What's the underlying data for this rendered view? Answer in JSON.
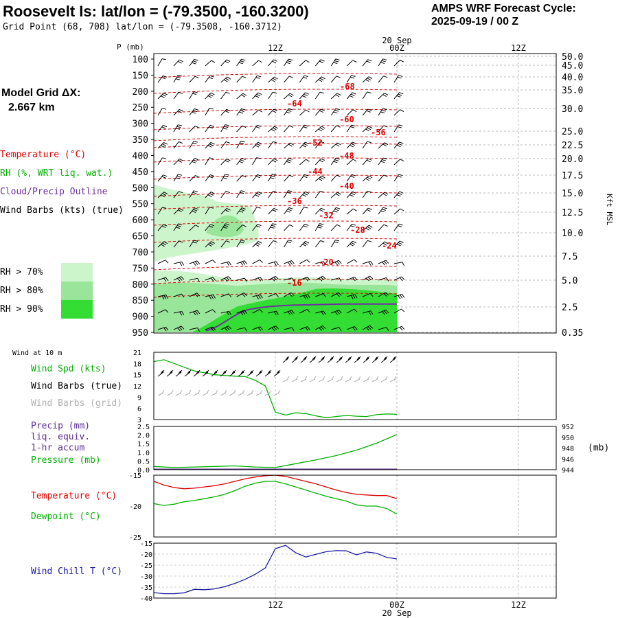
{
  "header": {
    "title": "Roosevelt Is:  lat/lon = (-79.3500, -160.3200)",
    "grid_point": "Grid Point (68, 708) lat/lon = (-79.3508, -160.3712)",
    "cycle_line1": "AMPS WRF Forecast Cycle:",
    "cycle_line2": "2025-09-19 / 00  Z"
  },
  "left_panel": {
    "model_grid_line1": "Model Grid ΔX:",
    "model_grid_line2": "2.667 km",
    "legend_temperature": "Temperature (°C)",
    "legend_rh": "RH (%, WRT liq. wat.)",
    "legend_cloud": "Cloud/Precip Outline",
    "legend_wind": "Wind Barbs (kts) (true)",
    "rh70": "RH > 70%",
    "rh80": "RH > 80%",
    "rh90": "RH > 90%"
  },
  "colors": {
    "temperature": "#e00000",
    "rh": "#00b000",
    "cloud": "#7030a0",
    "rh70": "#ccf5cc",
    "rh80": "#99e599",
    "rh90": "#33dd33",
    "precip": "#5a2d91",
    "windchill": "#1a1aa0",
    "wind_grid": "#b0b0b0"
  },
  "time_axis": {
    "top_date": "20 Sep",
    "bottom_date": "20 Sep",
    "ticks": [
      "12Z",
      "00Z",
      "12Z"
    ],
    "bottom_ticks": [
      "12Z",
      "00Z",
      "12Z"
    ]
  },
  "sounding": {
    "p_label": "P (mb)",
    "pressure_ticks": [
      "100",
      "150",
      "200",
      "250",
      "300",
      "350",
      "400",
      "450",
      "500",
      "550",
      "600",
      "650",
      "700",
      "750",
      "800",
      "850",
      "900",
      "950"
    ],
    "height_ticks": [
      "50.0",
      "45.0",
      "40.0",
      "35.0",
      "30.0",
      "25.0",
      "22.5",
      "20.0",
      "17.5",
      "15.0",
      "12.5",
      "10.0",
      "7.5",
      "5.0",
      "2.5",
      "0.35"
    ],
    "height_axis_label": "Kft MSL",
    "temp_labels": [
      "-68",
      "-64",
      "-60",
      "-56",
      "-52",
      "-48",
      "-44",
      "-40",
      "-36",
      "-32",
      "-28",
      "-24",
      "-20",
      "-16"
    ]
  },
  "panels": {
    "wind10": {
      "title": "Wind at 10 m",
      "label_spd": "Wind Spd (kts)",
      "label_barbs_true": "Wind Barbs (true)",
      "label_barbs_grid": "Wind Barbs (grid)",
      "y_ticks": [
        "21",
        "18",
        "15",
        "12",
        "9",
        "6",
        "3"
      ]
    },
    "precip": {
      "label1": "Precip (mm)",
      "label2": "liq. equiv.",
      "label3": "1-hr accum",
      "label4": "Pressure (mb)",
      "y_ticks_left": [
        "2.5",
        "2.0",
        "1.5",
        "1.0",
        "0.5",
        "0.0"
      ],
      "y_ticks_right": [
        "952",
        "950",
        "948",
        "946",
        "944"
      ],
      "right_unit": "(mb)"
    },
    "temp": {
      "label_temp": "Temperature (°C)",
      "label_dew": "Dewpoint (°C)",
      "y_ticks": [
        "-15",
        "-20",
        "-25"
      ]
    },
    "windchill": {
      "label": "Wind Chill T (°C)",
      "y_ticks": [
        "-15",
        "-20",
        "-25",
        "-30",
        "-35",
        "-40"
      ]
    }
  },
  "chart_data": [
    {
      "type": "line",
      "title": "Wind at 10 m",
      "xlabel": "",
      "ylabel": "Wind Spd (kts)",
      "x_hours": [
        0,
        1,
        2,
        3,
        4,
        5,
        6,
        7,
        8,
        9,
        10,
        11,
        12,
        13,
        14,
        15,
        16,
        17,
        18,
        19,
        20,
        21,
        22,
        23,
        24
      ],
      "ylim": [
        3,
        21
      ],
      "series": [
        {
          "name": "Wind Spd (kts)",
          "values": [
            18.5,
            19,
            18,
            17,
            16,
            15.5,
            15,
            14.8,
            14.6,
            14.5,
            13.5,
            12,
            5,
            4.2,
            4.8,
            4.6,
            4.0,
            3.5,
            3.8,
            4.1,
            3.9,
            3.8,
            4.3,
            4.5,
            4.4
          ]
        }
      ]
    },
    {
      "type": "line",
      "title": "Pressure",
      "xlabel": "",
      "ylabel": "Pressure (mb)",
      "x_hours": [
        0,
        2,
        4,
        6,
        8,
        10,
        12,
        14,
        16,
        18,
        20,
        22,
        24
      ],
      "ylim": [
        944,
        952
      ],
      "series": [
        {
          "name": "Pressure (mb)",
          "values": [
            944.6,
            944.4,
            944.5,
            944.6,
            944.7,
            944.5,
            944.4,
            945.1,
            945.8,
            946.6,
            947.6,
            948.9,
            950.5
          ]
        }
      ]
    },
    {
      "type": "line",
      "title": "Temperature / Dewpoint",
      "xlabel": "",
      "ylabel": "",
      "x_hours": [
        0,
        1,
        2,
        3,
        4,
        5,
        6,
        7,
        8,
        9,
        10,
        11,
        12,
        13,
        14,
        15,
        16,
        17,
        18,
        19,
        20,
        21,
        22,
        23,
        24
      ],
      "ylim": [
        -25,
        -15
      ],
      "series": [
        {
          "name": "Temperature (°C)",
          "values": [
            -16,
            -16.6,
            -17.0,
            -17.2,
            -17.1,
            -16.9,
            -16.7,
            -16.4,
            -16.0,
            -15.6,
            -15.3,
            -15.1,
            -15.0,
            -15.2,
            -15.6,
            -16.0,
            -16.4,
            -16.9,
            -17.4,
            -17.8,
            -18.1,
            -18.2,
            -18.3,
            -18.3,
            -18.8
          ]
        },
        {
          "name": "Dewpoint (°C)",
          "values": [
            -19.6,
            -19.9,
            -19.7,
            -19.3,
            -19.1,
            -18.8,
            -18.5,
            -18.1,
            -17.5,
            -16.8,
            -16.3,
            -16.0,
            -16.0,
            -16.4,
            -16.9,
            -17.4,
            -17.9,
            -18.4,
            -18.8,
            -19.2,
            -19.8,
            -20.0,
            -20.0,
            -20.4,
            -21.3
          ]
        }
      ]
    },
    {
      "type": "line",
      "title": "Wind Chill",
      "xlabel": "",
      "ylabel": "Wind Chill T (°C)",
      "x_hours": [
        0,
        1,
        2,
        3,
        4,
        5,
        6,
        7,
        8,
        9,
        10,
        11,
        12,
        13,
        14,
        15,
        16,
        17,
        18,
        19,
        20,
        21,
        22,
        23,
        24
      ],
      "ylim": [
        -40,
        -15
      ],
      "series": [
        {
          "name": "Wind Chill T (°C)",
          "values": [
            -37.5,
            -38,
            -38,
            -37.6,
            -36,
            -36.2,
            -35.8,
            -34.8,
            -33.3,
            -31.5,
            -29.2,
            -26.3,
            -17.5,
            -16.0,
            -19.3,
            -21.3,
            -20.1,
            -18.9,
            -18.4,
            -18.5,
            -20.3,
            -19.0,
            -19.6,
            -21.5,
            -22.2
          ]
        }
      ]
    }
  ]
}
